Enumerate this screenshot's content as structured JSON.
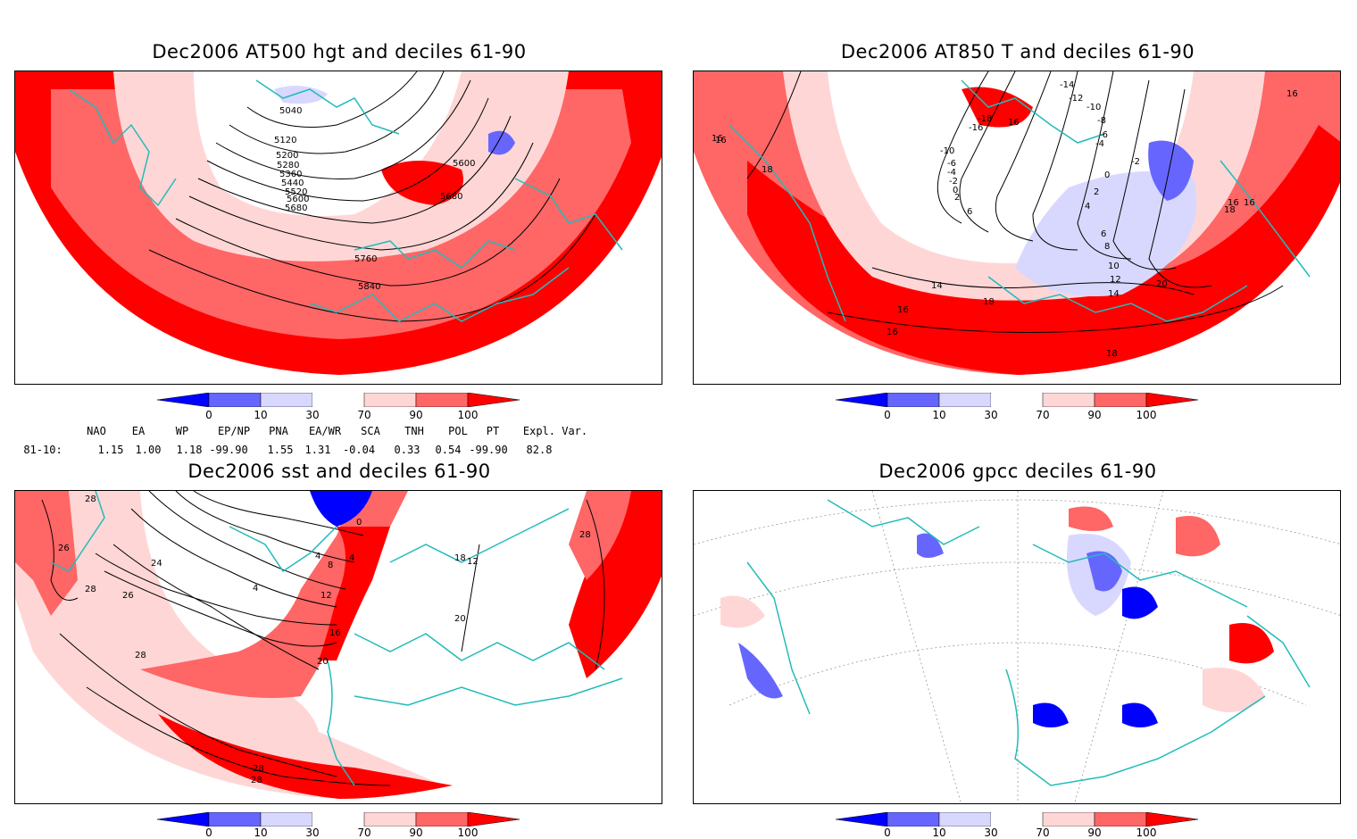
{
  "colors": {
    "dark_blue": "#0000ff",
    "mid_blue": "#6666ff",
    "light_blue": "#d8d8ff",
    "white": "#ffffff",
    "light_red": "#ffd6d6",
    "mid_red": "#ff6666",
    "dark_red": "#ff0000",
    "coast": "#22bbbb"
  },
  "panels": [
    {
      "id": "hgt",
      "title": "Dec2006 AT500 hgt and deciles 61-90",
      "contour_labels": [
        "5040",
        "5120",
        "5200",
        "5280",
        "5360",
        "5440",
        "5520",
        "5600",
        "5680",
        "5600",
        "5680",
        "5760",
        "5840"
      ]
    },
    {
      "id": "t850",
      "title": "Dec2006 AT850 T and deciles 61-90",
      "contour_labels": [
        "-14",
        "-12",
        "-10",
        "-8",
        "-6",
        "-4",
        "-2",
        "0",
        "2",
        "4",
        "6",
        "8",
        "10",
        "12",
        "14",
        "16",
        "16",
        "16",
        "18",
        "18",
        "18",
        "16",
        "20",
        "-10",
        "-18",
        "-16",
        "-6",
        "-4",
        "-2",
        "0",
        "2",
        "6",
        "14",
        "16",
        "16",
        "18",
        "16",
        "16"
      ]
    },
    {
      "id": "sst",
      "title": "Dec2006 sst and deciles 61-90",
      "contour_labels": [
        "28",
        "26",
        "28",
        "26",
        "24",
        "4",
        "8",
        "12",
        "16",
        "20",
        "28",
        "28",
        "28",
        "0",
        "4",
        "4",
        "18",
        "12",
        "20",
        "28"
      ]
    },
    {
      "id": "gpcc",
      "title": "Dec2006 gpcc deciles 61-90",
      "contour_labels": []
    }
  ],
  "colorbar": {
    "ticks": [
      "0",
      "10",
      "30",
      "70",
      "90",
      "100"
    ]
  },
  "indices": {
    "headers": [
      "NAO",
      "EA",
      "WP",
      "EP/NP",
      "PNA",
      "EA/WR",
      "SCA",
      "TNH",
      "POL",
      "PT",
      "Expl. Var."
    ],
    "row_label": "81-10:",
    "values": [
      "1.15",
      "1.00",
      "1.18",
      "-99.90",
      "1.55",
      "1.31",
      "-0.04",
      "0.33",
      "0.54",
      "-99.90",
      "82.8"
    ]
  }
}
